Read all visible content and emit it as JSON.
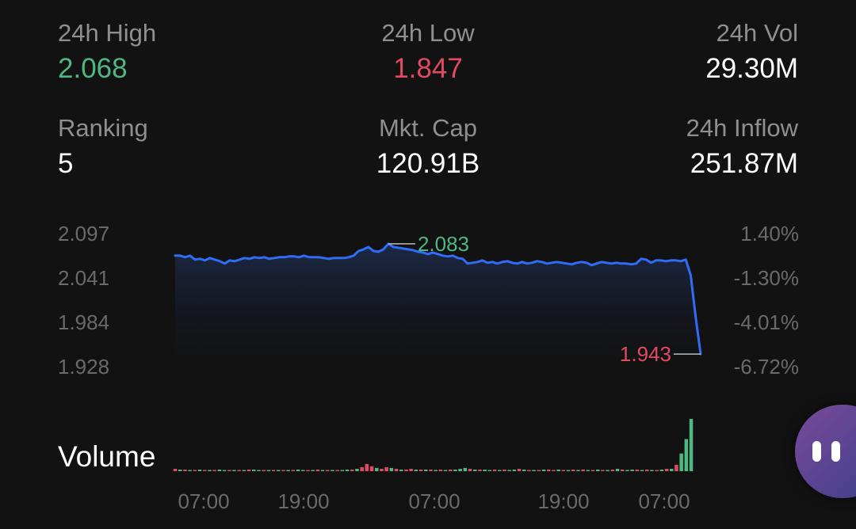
{
  "stats": {
    "high": {
      "label": "24h High",
      "value": "2.068"
    },
    "low": {
      "label": "24h Low",
      "value": "1.847"
    },
    "vol": {
      "label": "24h Vol",
      "value": "29.30M"
    },
    "ranking": {
      "label": "Ranking",
      "value": "5"
    },
    "mktcap": {
      "label": "Mkt. Cap",
      "value": "120.91B"
    },
    "inflow": {
      "label": "24h Inflow",
      "value": "251.87M"
    }
  },
  "colors": {
    "up": "#4fb882",
    "down": "#e24a64",
    "line": "#2f6df6",
    "label": "#8f8f8f",
    "axis": "#6a6a6a"
  },
  "chart_data": [
    {
      "type": "line",
      "y_ticks": [
        "2.097",
        "2.041",
        "1.984",
        "1.928"
      ],
      "y_ticks_right": [
        "1.40%",
        "-1.30%",
        "-4.01%",
        "-6.72%"
      ],
      "ylim": [
        1.928,
        2.097
      ],
      "x_ticks": [
        "07:00",
        "19:00",
        "07:00",
        "19:00",
        "07:00"
      ],
      "high_marker": "2.083",
      "low_marker": "1.943",
      "series": [
        {
          "values": [
            2.068,
            2.068,
            2.066,
            2.068,
            2.063,
            2.064,
            2.062,
            2.065,
            2.063,
            2.061,
            2.058,
            2.062,
            2.061,
            2.063,
            2.065,
            2.064,
            2.066,
            2.065,
            2.066,
            2.064,
            2.065,
            2.066,
            2.066,
            2.067,
            2.067,
            2.066,
            2.068,
            2.066,
            2.066,
            2.066,
            2.065,
            2.064,
            2.065,
            2.065,
            2.065,
            2.066,
            2.068,
            2.074,
            2.076,
            2.079,
            2.074,
            2.073,
            2.076,
            2.083,
            2.079,
            2.078,
            2.077,
            2.076,
            2.075,
            2.073,
            2.072,
            2.07,
            2.072,
            2.07,
            2.068,
            2.067,
            2.068,
            2.065,
            2.064,
            2.058,
            2.059,
            2.06,
            2.062,
            2.059,
            2.06,
            2.058,
            2.06,
            2.061,
            2.059,
            2.058,
            2.06,
            2.058,
            2.059,
            2.061,
            2.06,
            2.058,
            2.059,
            2.06,
            2.059,
            2.058,
            2.057,
            2.059,
            2.06,
            2.059,
            2.056,
            2.058,
            2.06,
            2.059,
            2.058,
            2.059,
            2.058,
            2.058,
            2.057,
            2.058,
            2.064,
            2.063,
            2.059,
            2.062,
            2.062,
            2.061,
            2.062,
            2.062,
            2.061,
            2.063,
            2.043,
            1.99,
            1.943
          ]
        }
      ]
    },
    {
      "type": "bar",
      "title": "Volume",
      "values": [
        3,
        2,
        2,
        1,
        1,
        2,
        1,
        1,
        1,
        2,
        1,
        1,
        1,
        1,
        1,
        2,
        2,
        1,
        1,
        1,
        1,
        1,
        1,
        1,
        1,
        2,
        1,
        1,
        1,
        2,
        1,
        1,
        1,
        1,
        1,
        2,
        2,
        3,
        5,
        9,
        6,
        4,
        3,
        5,
        4,
        3,
        2,
        2,
        3,
        2,
        2,
        2,
        2,
        1,
        2,
        1,
        2,
        2,
        3,
        4,
        3,
        2,
        2,
        2,
        1,
        2,
        1,
        2,
        1,
        2,
        3,
        2,
        1,
        1,
        1,
        2,
        2,
        1,
        2,
        1,
        1,
        2,
        1,
        2,
        1,
        1,
        2,
        1,
        1,
        2,
        3,
        2,
        1,
        2,
        2,
        1,
        2,
        1,
        1,
        2,
        3,
        3,
        8,
        22,
        40,
        65
      ],
      "directions": [
        "d",
        "u",
        "d",
        "u",
        "d",
        "u",
        "d",
        "u",
        "d",
        "u",
        "u",
        "d",
        "u",
        "d",
        "u",
        "d",
        "u",
        "u",
        "d",
        "u",
        "d",
        "u",
        "d",
        "u",
        "d",
        "u",
        "u",
        "d",
        "u",
        "d",
        "u",
        "d",
        "u",
        "d",
        "u",
        "u",
        "d",
        "u",
        "d",
        "d",
        "d",
        "u",
        "d",
        "d",
        "u",
        "d",
        "u",
        "d",
        "d",
        "u",
        "d",
        "u",
        "d",
        "u",
        "d",
        "u",
        "d",
        "u",
        "u",
        "u",
        "d",
        "u",
        "d",
        "u",
        "u",
        "d",
        "u",
        "d",
        "u",
        "u",
        "d",
        "u",
        "d",
        "u",
        "d",
        "u",
        "d",
        "d",
        "u",
        "d",
        "u",
        "d",
        "u",
        "d",
        "u",
        "d",
        "u",
        "d",
        "u",
        "d",
        "u",
        "d",
        "u",
        "u",
        "d",
        "u",
        "d",
        "u",
        "d",
        "u",
        "d",
        "u",
        "d",
        "u",
        "u",
        "u"
      ]
    }
  ],
  "volume_label": "Volume",
  "float_button": {
    "icon": "pause-icon"
  }
}
